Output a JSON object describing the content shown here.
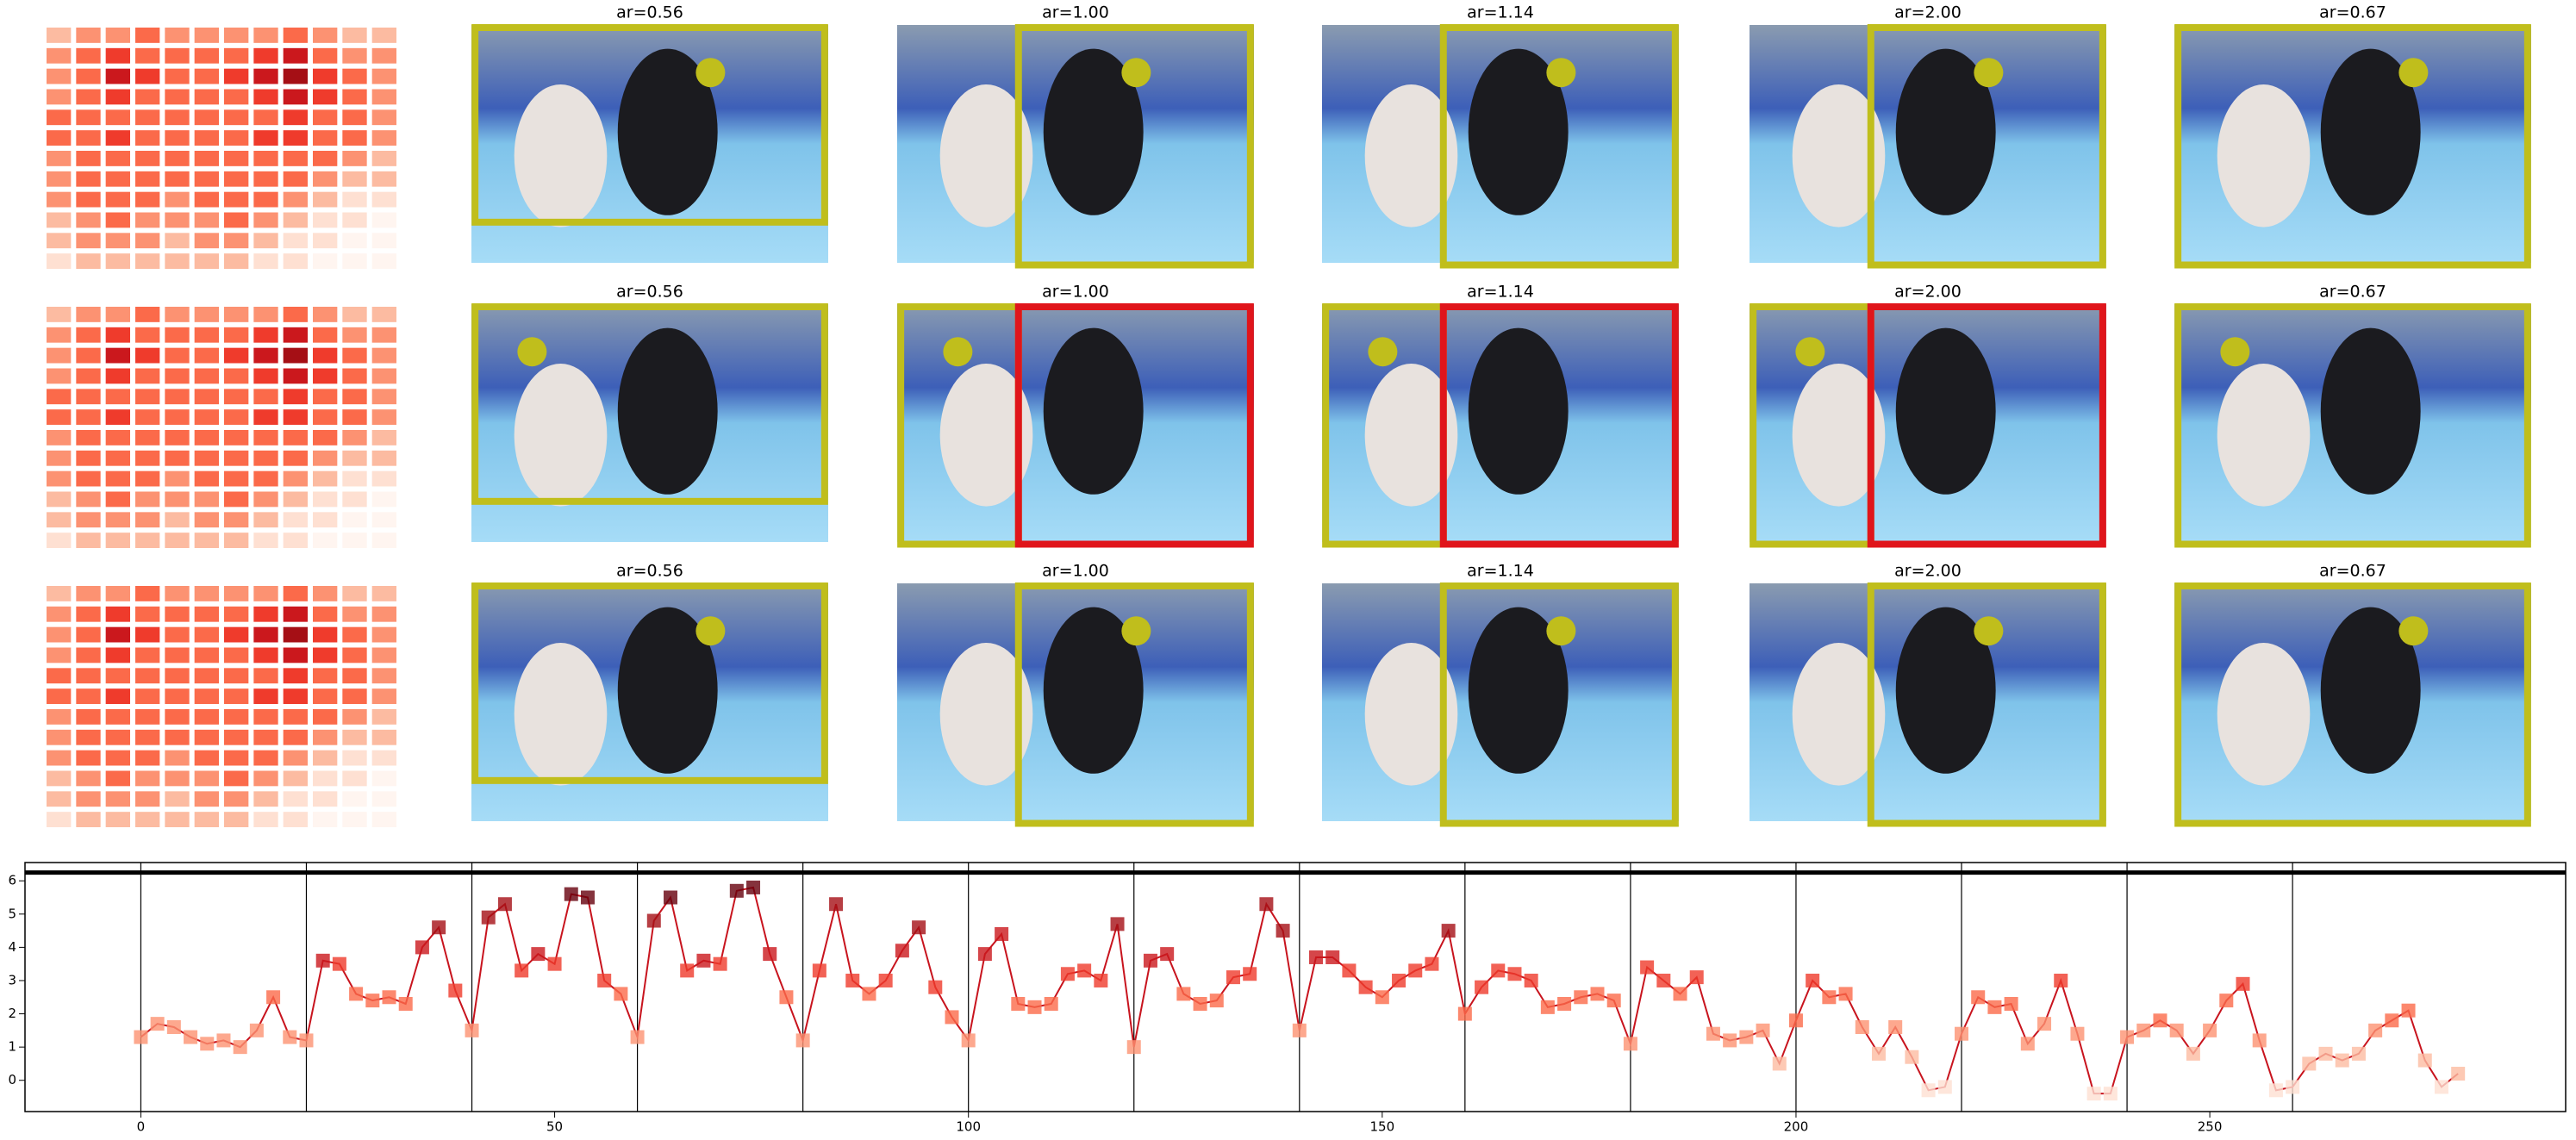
{
  "figure": {
    "rows": [
      {
        "titles": [
          "ar=0.56",
          "ar=1.00",
          "ar=1.14",
          "ar=2.00",
          "ar=0.67"
        ]
      },
      {
        "titles": [
          "ar=0.56",
          "ar=1.00",
          "ar=1.14",
          "ar=2.00",
          "ar=0.67"
        ]
      },
      {
        "titles": [
          "ar=0.56",
          "ar=1.00",
          "ar=1.14",
          "ar=2.00",
          "ar=0.67"
        ]
      }
    ],
    "heatmap": [
      [
        2,
        3,
        3,
        4,
        3,
        3,
        3,
        3,
        4,
        3,
        2,
        2
      ],
      [
        3,
        4,
        6,
        5,
        4,
        4,
        5,
        6,
        7,
        5,
        3,
        3
      ],
      [
        3,
        5,
        7,
        6,
        4,
        5,
        6,
        7,
        8,
        6,
        4,
        3
      ],
      [
        3,
        5,
        6,
        5,
        4,
        4,
        5,
        6,
        7,
        6,
        4,
        3
      ],
      [
        4,
        5,
        5,
        5,
        4,
        4,
        5,
        5,
        6,
        5,
        4,
        3
      ],
      [
        4,
        5,
        6,
        5,
        4,
        5,
        5,
        6,
        6,
        5,
        4,
        3
      ],
      [
        3,
        4,
        5,
        5,
        4,
        4,
        5,
        5,
        5,
        4,
        3,
        2
      ],
      [
        3,
        4,
        5,
        4,
        4,
        4,
        5,
        5,
        4,
        3,
        2,
        2
      ],
      [
        3,
        4,
        4,
        4,
        3,
        4,
        5,
        4,
        3,
        2,
        1,
        1
      ],
      [
        2,
        3,
        4,
        3,
        3,
        3,
        4,
        3,
        2,
        1,
        1,
        0
      ],
      [
        2,
        3,
        3,
        3,
        2,
        3,
        3,
        2,
        1,
        1,
        0,
        0
      ],
      [
        1,
        2,
        2,
        2,
        2,
        2,
        2,
        1,
        1,
        0,
        0,
        0
      ]
    ]
  },
  "chart_data": {
    "type": "line",
    "x": [
      0,
      2,
      4,
      6,
      8,
      10,
      12,
      14,
      16,
      18,
      20,
      22,
      24,
      26,
      28,
      30,
      32,
      34,
      36,
      38,
      40,
      42,
      44,
      46,
      48,
      50,
      52,
      54,
      56,
      58,
      60,
      62,
      64,
      66,
      68,
      70,
      72,
      74,
      76,
      78,
      80,
      82,
      84,
      86,
      88,
      90,
      92,
      94,
      96,
      98,
      100,
      102,
      104,
      106,
      108,
      110,
      112,
      114,
      116,
      118,
      120,
      122,
      124,
      126,
      128,
      130,
      132,
      134,
      136,
      138,
      140,
      142,
      144,
      146,
      148,
      150,
      152,
      154,
      156,
      158,
      160,
      162,
      164,
      166,
      168,
      170,
      172,
      174,
      176,
      178,
      180,
      182,
      184,
      186,
      188,
      190,
      192,
      194,
      196,
      198,
      200,
      202,
      204,
      206,
      208,
      210,
      212,
      214,
      216,
      218,
      220,
      222,
      224,
      226,
      228,
      230,
      232,
      234,
      236,
      238,
      240,
      242,
      244,
      246,
      248,
      250,
      252,
      254,
      256,
      258,
      260,
      262,
      264,
      266,
      268,
      270,
      272,
      274,
      276,
      278,
      280
    ],
    "values": [
      1.3,
      1.7,
      1.6,
      1.3,
      1.1,
      1.2,
      1.0,
      1.5,
      2.5,
      1.3,
      1.2,
      3.6,
      3.5,
      2.6,
      2.4,
      2.5,
      2.3,
      4.0,
      4.6,
      2.7,
      1.5,
      4.9,
      5.3,
      3.3,
      3.8,
      3.5,
      5.6,
      5.5,
      3.0,
      2.6,
      1.3,
      4.8,
      5.5,
      3.3,
      3.6,
      3.5,
      5.7,
      5.8,
      3.8,
      2.5,
      1.2,
      3.3,
      5.3,
      3.0,
      2.6,
      3.0,
      3.9,
      4.6,
      2.8,
      1.9,
      1.2,
      3.8,
      4.4,
      2.3,
      2.2,
      2.3,
      3.2,
      3.3,
      3.0,
      4.7,
      1.0,
      3.6,
      3.8,
      2.6,
      2.3,
      2.4,
      3.1,
      3.2,
      5.3,
      4.5,
      1.5,
      3.7,
      3.7,
      3.3,
      2.8,
      2.5,
      3.0,
      3.3,
      3.5,
      4.5,
      2.0,
      2.8,
      3.3,
      3.2,
      3.0,
      2.2,
      2.3,
      2.5,
      2.6,
      2.4,
      1.1,
      3.4,
      3.0,
      2.6,
      3.1,
      1.4,
      1.2,
      1.3,
      1.5,
      0.5,
      1.8,
      3.0,
      2.5,
      2.6,
      1.6,
      0.8,
      1.6,
      0.7,
      -0.3,
      -0.2,
      1.4,
      2.5,
      2.2,
      2.3,
      1.1,
      1.7,
      3.0,
      1.4,
      -0.4,
      -0.4,
      1.3,
      1.5,
      1.8,
      1.5,
      0.8,
      1.5,
      2.4,
      2.9,
      1.2,
      -0.3,
      -0.2,
      0.5,
      0.8,
      0.6,
      0.8,
      1.5,
      1.8,
      2.1,
      0.6,
      -0.2,
      0.2
    ],
    "color": "#c8141e",
    "cmap": [
      "#fff5f0",
      "#fee0d2",
      "#fcbba1",
      "#fc9272",
      "#fb6a4a",
      "#ef3b2c",
      "#cb181d",
      "#a50f15",
      "#67000d"
    ],
    "xlim": [
      -14,
      293
    ],
    "ylim": [
      -0.94,
      6.55
    ],
    "xticks": [
      0,
      50,
      100,
      150,
      200,
      250
    ],
    "yticks": [
      0,
      1,
      2,
      3,
      4,
      5,
      6
    ],
    "vlines": [
      0,
      20,
      40,
      60,
      80,
      100,
      120,
      140,
      160,
      180,
      200,
      220,
      240,
      260
    ],
    "hline": 6.25
  }
}
